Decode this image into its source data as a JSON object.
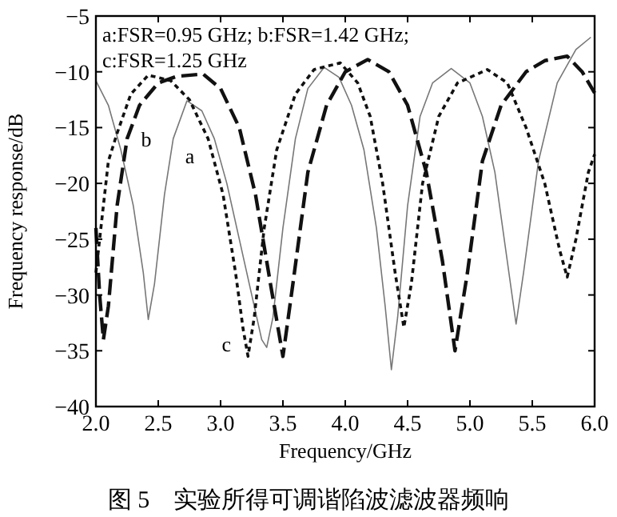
{
  "chart_data": {
    "type": "line",
    "title": "图 5　实验所得可调谐陷波滤波器频响",
    "xlabel": "Frequency/GHz",
    "ylabel": "Frequency response/dB",
    "xlim": [
      2,
      6
    ],
    "ylim": [
      -40,
      -5
    ],
    "xticks": [
      {
        "value": 2,
        "label": "2.0"
      },
      {
        "value": 2.5,
        "label": "2.5"
      },
      {
        "value": 3,
        "label": "3.0"
      },
      {
        "value": 3.5,
        "label": "3.5"
      },
      {
        "value": 4,
        "label": "4.0"
      },
      {
        "value": 4.5,
        "label": "4.5"
      },
      {
        "value": 5,
        "label": "5.0"
      },
      {
        "value": 5.5,
        "label": "5.5"
      },
      {
        "value": 6,
        "label": "6.0"
      }
    ],
    "yticks": [
      {
        "value": -5,
        "label": "−5"
      },
      {
        "value": -10,
        "label": "−10"
      },
      {
        "value": -15,
        "label": "−15"
      },
      {
        "value": -20,
        "label": "−20"
      },
      {
        "value": -25,
        "label": "−25"
      },
      {
        "value": -30,
        "label": "−30"
      },
      {
        "value": -35,
        "label": "−35"
      },
      {
        "value": -40,
        "label": "−40"
      }
    ],
    "grid": false,
    "marker": "none",
    "series": [
      {
        "color": "#777777",
        "line_style": "solid",
        "x": [
          2.0,
          2.1,
          2.2,
          2.3,
          2.38,
          2.42,
          2.47,
          2.55,
          2.62,
          2.73,
          2.85,
          2.95,
          3.05,
          3.15,
          3.25,
          3.33,
          3.37,
          3.42,
          3.5,
          3.6,
          3.7,
          3.83,
          3.95,
          4.05,
          4.15,
          4.25,
          4.32,
          4.37,
          4.42,
          4.5,
          4.6,
          4.7,
          4.85,
          5.0,
          5.1,
          5.2,
          5.3,
          5.37,
          5.43,
          5.55,
          5.7,
          5.85,
          5.97
        ],
        "values": [
          -10.8,
          -13,
          -17,
          -22,
          -28,
          -32.2,
          -29,
          -21,
          -16,
          -12.6,
          -13.5,
          -16,
          -20,
          -25,
          -30,
          -34,
          -34.7,
          -32,
          -24,
          -16,
          -11.5,
          -9.6,
          -10.5,
          -13,
          -17,
          -24,
          -31,
          -36.7,
          -32,
          -22,
          -14,
          -11,
          -9.7,
          -11,
          -14,
          -19,
          -27,
          -32.6,
          -28,
          -18,
          -11,
          -8,
          -6.9
        ]
      },
      {
        "color": "#111111",
        "line_style": "dashed",
        "x": [
          2.0,
          2.03,
          2.06,
          2.1,
          2.17,
          2.25,
          2.35,
          2.5,
          2.65,
          2.86,
          3.0,
          3.15,
          3.28,
          3.4,
          3.5,
          3.58,
          3.7,
          3.85,
          4.0,
          4.18,
          4.35,
          4.5,
          4.65,
          4.78,
          4.88,
          4.98,
          5.1,
          5.25,
          5.45,
          5.6,
          5.78,
          5.9,
          6.0
        ],
        "values": [
          -24,
          -30,
          -34,
          -31,
          -22,
          -16,
          -13,
          -11,
          -10.4,
          -10.2,
          -11.5,
          -15,
          -21,
          -29,
          -35.5,
          -29,
          -19,
          -13,
          -10,
          -8.9,
          -10,
          -13,
          -19,
          -27,
          -35,
          -28,
          -18,
          -13,
          -10,
          -9,
          -8.6,
          -10,
          -11.9
        ]
      },
      {
        "color": "#111111",
        "line_style": "dotted",
        "x": [
          2.0,
          2.05,
          2.1,
          2.17,
          2.28,
          2.42,
          2.6,
          2.75,
          2.9,
          3.02,
          3.12,
          3.18,
          3.22,
          3.27,
          3.35,
          3.45,
          3.6,
          3.75,
          3.96,
          4.1,
          4.2,
          4.3,
          4.4,
          4.47,
          4.53,
          4.62,
          4.75,
          4.9,
          5.14,
          5.3,
          5.45,
          5.6,
          5.72,
          5.78,
          5.85,
          5.95,
          6.0
        ],
        "values": [
          -28,
          -23,
          -18,
          -15.5,
          -12,
          -10.3,
          -10.8,
          -12.5,
          -16,
          -21,
          -28,
          -33,
          -35.5,
          -32,
          -24,
          -17,
          -12,
          -9.8,
          -9.2,
          -11,
          -14,
          -20,
          -28,
          -32.9,
          -29,
          -20,
          -14,
          -11,
          -9.8,
          -11,
          -15,
          -20,
          -26,
          -28.4,
          -25,
          -19,
          -17.4
        ]
      }
    ],
    "annotations": [
      "a:FSR=0.95 GHz; b:FSR=1.42 GHz;",
      "c:FSR=1.25 GHz",
      {
        "text": "a",
        "x": 2.6,
        "y": -17.5
      },
      {
        "text": "b",
        "x": 2.25,
        "y": -16
      },
      {
        "text": "c",
        "x": 3.2,
        "y": -34.3
      }
    ]
  }
}
